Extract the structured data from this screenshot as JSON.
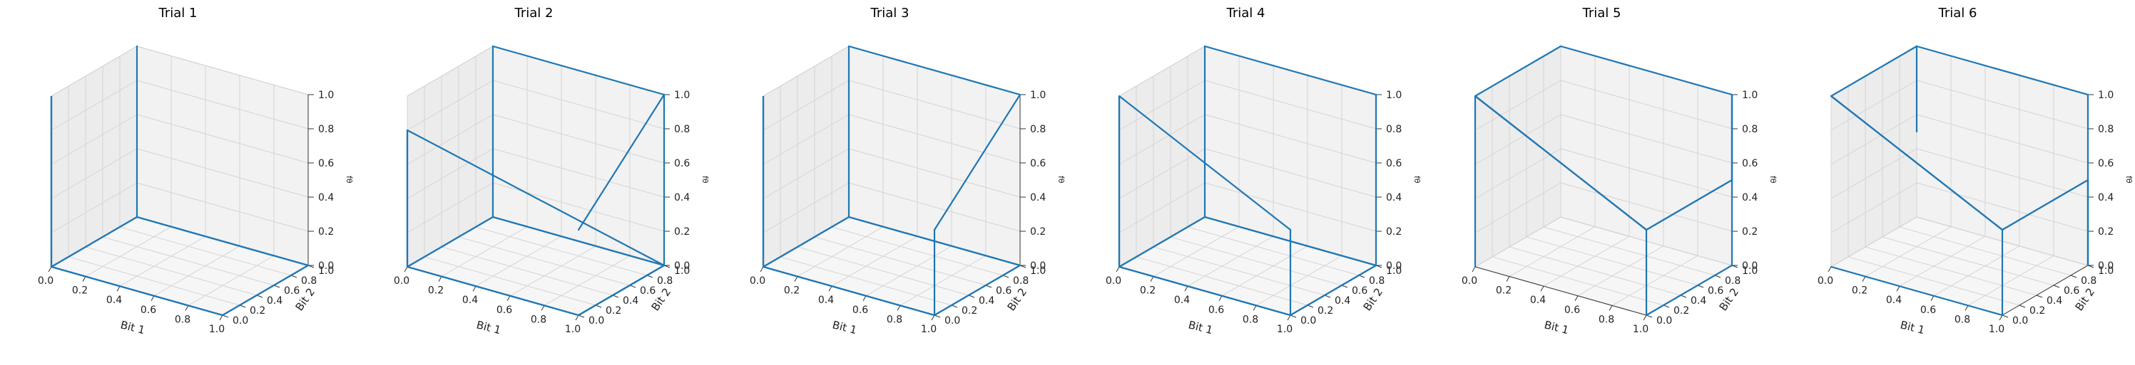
{
  "chart_data": {
    "type": "line3d",
    "xlabel": "Bit 1",
    "ylabel": "Bit 2",
    "zlabel": "fθ",
    "xlim": [
      0.0,
      1.0
    ],
    "ylim": [
      0.0,
      1.0
    ],
    "zlim": [
      0.0,
      1.0
    ],
    "xticks": [
      "0.0",
      "0.2",
      "0.4",
      "0.6",
      "0.8",
      "1.0"
    ],
    "yticks": [
      "0.0",
      "0.2",
      "0.4",
      "0.6",
      "0.8",
      "1.0"
    ],
    "zticks": [
      "0.0",
      "0.2",
      "0.4",
      "0.6",
      "0.8",
      "1.0"
    ],
    "grid": true,
    "line_color": "#1f77b4",
    "panels": [
      {
        "title": "Trial 1",
        "x": [
          0,
          1,
          1,
          0,
          0,
          0
        ],
        "y": [
          0,
          0,
          1,
          1,
          0,
          0
        ],
        "z": [
          0,
          0,
          0,
          0,
          0,
          1
        ],
        "extra": [
          [
            [
              0,
              1,
              0
            ],
            [
              0,
              1,
              1
            ]
          ]
        ]
      },
      {
        "title": "Trial 2",
        "x": [
          0,
          0,
          1,
          1,
          0,
          0
        ],
        "y": [
          0,
          0,
          0,
          1,
          1,
          0
        ],
        "z": [
          0.8,
          0,
          0,
          0,
          0,
          0
        ],
        "extra": [
          [
            [
              0,
              0,
              0.8
            ],
            [
              1,
              1,
              0
            ]
          ],
          [
            [
              1,
              0,
              0
            ],
            [
              1,
              1,
              0.0
            ]
          ],
          [
            [
              1,
              1,
              0
            ],
            [
              1,
              1,
              1
            ]
          ],
          [
            [
              0,
              1,
              0
            ],
            [
              0,
              1,
              1
            ]
          ],
          [
            [
              0,
              1,
              1
            ],
            [
              1,
              1,
              1
            ]
          ],
          [
            [
              1,
              1,
              1
            ],
            [
              1,
              0,
              0.5
            ]
          ]
        ]
      },
      {
        "title": "Trial 3",
        "x": [
          0,
          1,
          1,
          0,
          0,
          0
        ],
        "y": [
          0,
          0,
          1,
          1,
          0,
          0
        ],
        "z": [
          0,
          0,
          0,
          0,
          0,
          1
        ],
        "extra": [
          [
            [
              0,
              1,
              0
            ],
            [
              0,
              1,
              1
            ]
          ],
          [
            [
              0,
              1,
              1
            ],
            [
              1,
              1,
              1
            ]
          ],
          [
            [
              1,
              1,
              1
            ],
            [
              1,
              0,
              0.5
            ]
          ],
          [
            [
              1,
              0,
              0.5
            ],
            [
              1,
              0,
              0
            ]
          ]
        ]
      },
      {
        "title": "Trial 4",
        "x": [
          0,
          1,
          1,
          0,
          0,
          0
        ],
        "y": [
          0,
          0,
          1,
          1,
          0,
          0
        ],
        "z": [
          0,
          0,
          0,
          0,
          0,
          1
        ],
        "extra": [
          [
            [
              0,
              0,
              1
            ],
            [
              1,
              0,
              0.5
            ]
          ],
          [
            [
              1,
              0,
              0.5
            ],
            [
              1,
              0,
              0
            ]
          ],
          [
            [
              0,
              1,
              0
            ],
            [
              0,
              1,
              1
            ]
          ],
          [
            [
              0,
              1,
              1
            ],
            [
              1,
              1,
              1
            ]
          ],
          [
            [
              1,
              1,
              1
            ],
            [
              1,
              1,
              0
            ]
          ]
        ]
      },
      {
        "title": "Trial 5",
        "x": [
          0,
          1,
          1,
          1
        ],
        "y": [
          0,
          0,
          1,
          1
        ],
        "z": [
          1,
          0.5,
          0.5,
          1
        ],
        "extra": [
          [
            [
              0,
              0,
              1
            ],
            [
              0,
              0,
              0
            ]
          ],
          [
            [
              1,
              0,
              0.5
            ],
            [
              1,
              0,
              0
            ]
          ],
          [
            [
              0,
              1,
              1
            ],
            [
              1,
              1,
              1
            ]
          ],
          [
            [
              0,
              0,
              1
            ],
            [
              0,
              1,
              1
            ]
          ],
          [
            [
              1,
              1,
              1
            ],
            [
              1,
              1,
              0
            ]
          ],
          [
            [
              1,
              1,
              0
            ],
            [
              1,
              0,
              0
            ]
          ]
        ]
      },
      {
        "title": "Trial 6",
        "x": [
          0,
          1,
          1,
          1
        ],
        "y": [
          0,
          0,
          1,
          1
        ],
        "z": [
          1,
          0.5,
          0.5,
          0
        ],
        "extra": [
          [
            [
              0,
              0,
              1
            ],
            [
              0,
              1,
              1
            ]
          ],
          [
            [
              0,
              1,
              1
            ],
            [
              1,
              1,
              1
            ]
          ],
          [
            [
              1,
              1,
              1
            ],
            [
              1,
              1,
              0
            ]
          ],
          [
            [
              1,
              0,
              0.5
            ],
            [
              1,
              0,
              0
            ]
          ],
          [
            [
              1,
              0,
              0
            ],
            [
              0,
              0,
              0
            ]
          ],
          [
            [
              0,
              1,
              1
            ],
            [
              0,
              1,
              0.5
            ]
          ]
        ]
      }
    ]
  }
}
